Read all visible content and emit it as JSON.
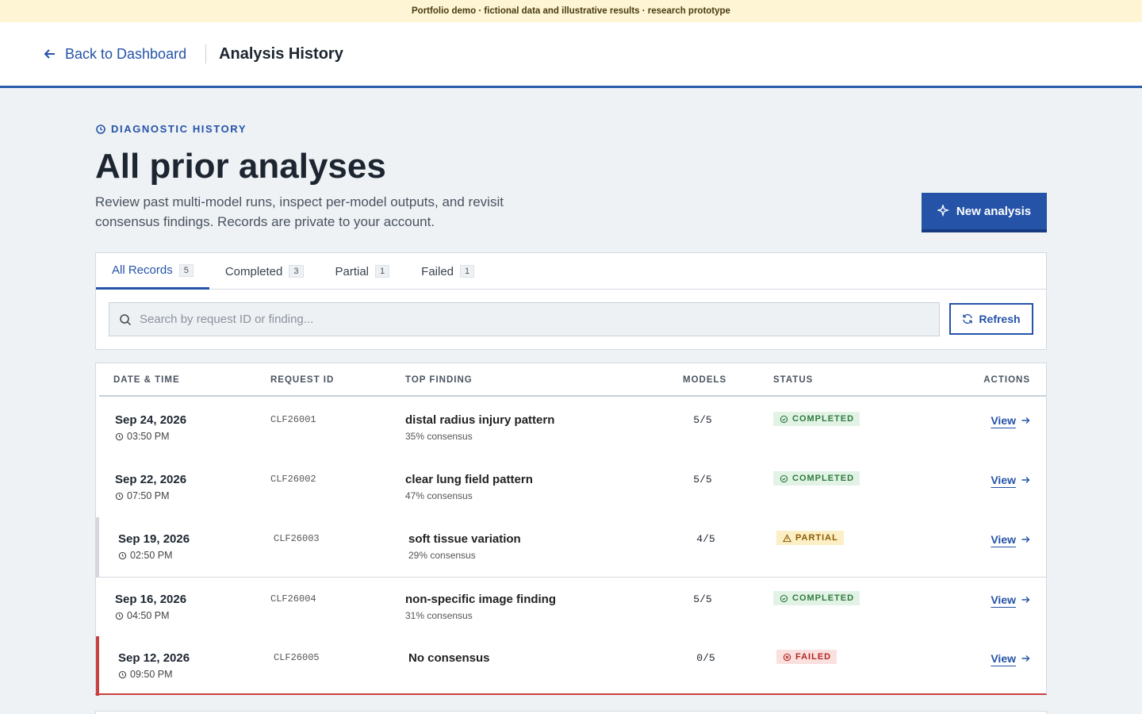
{
  "banner": "Portfolio demo · fictional data and illustrative results · research prototype",
  "header": {
    "back": "Back to Dashboard",
    "title": "Analysis History"
  },
  "hero": {
    "eyebrow": "DIAGNOSTIC HISTORY",
    "title": "All prior analyses",
    "description": "Review past multi-model runs, inspect per-model outputs, and revisit consensus findings. Records are private to your account.",
    "button": "New analysis"
  },
  "tabs": [
    {
      "label": "All Records",
      "count": 5
    },
    {
      "label": "Completed",
      "count": 3
    },
    {
      "label": "Partial",
      "count": 1
    },
    {
      "label": "Failed",
      "count": 1
    }
  ],
  "search": {
    "placeholder": "Search by request ID or finding...",
    "button": "Refresh"
  },
  "table": {
    "columns": [
      "DATE & TIME",
      "REQUEST ID",
      "TOP FINDING",
      "MODELS",
      "STATUS",
      "ACTIONS"
    ],
    "rows": [
      {
        "date": "Sep 24, 2026",
        "time": "03:50 PM",
        "id": "CLF26001",
        "finding": "distal radius injury pattern",
        "consensus": "35% consensus",
        "models": "5/5",
        "status": "COMPLETED",
        "action": "View"
      },
      {
        "date": "Sep 22, 2026",
        "time": "07:50 PM",
        "id": "CLF26002",
        "finding": "clear lung field pattern",
        "consensus": "47% consensus",
        "models": "5/5",
        "status": "COMPLETED",
        "action": "View"
      },
      {
        "date": "Sep 19, 2026",
        "time": "02:50 PM",
        "id": "CLF26003",
        "finding": "soft tissue variation",
        "consensus": "29% consensus",
        "models": "4/5",
        "status": "PARTIAL",
        "action": "View"
      },
      {
        "date": "Sep 16, 2026",
        "time": "04:50 PM",
        "id": "CLF26004",
        "finding": "non-specific image finding",
        "consensus": "31% consensus",
        "models": "5/5",
        "status": "COMPLETED",
        "action": "View"
      },
      {
        "date": "Sep 12, 2026",
        "time": "09:50 PM",
        "id": "CLF26005",
        "finding": "No consensus",
        "models": "0/5",
        "status": "FAILED",
        "action": "View"
      }
    ]
  }
}
